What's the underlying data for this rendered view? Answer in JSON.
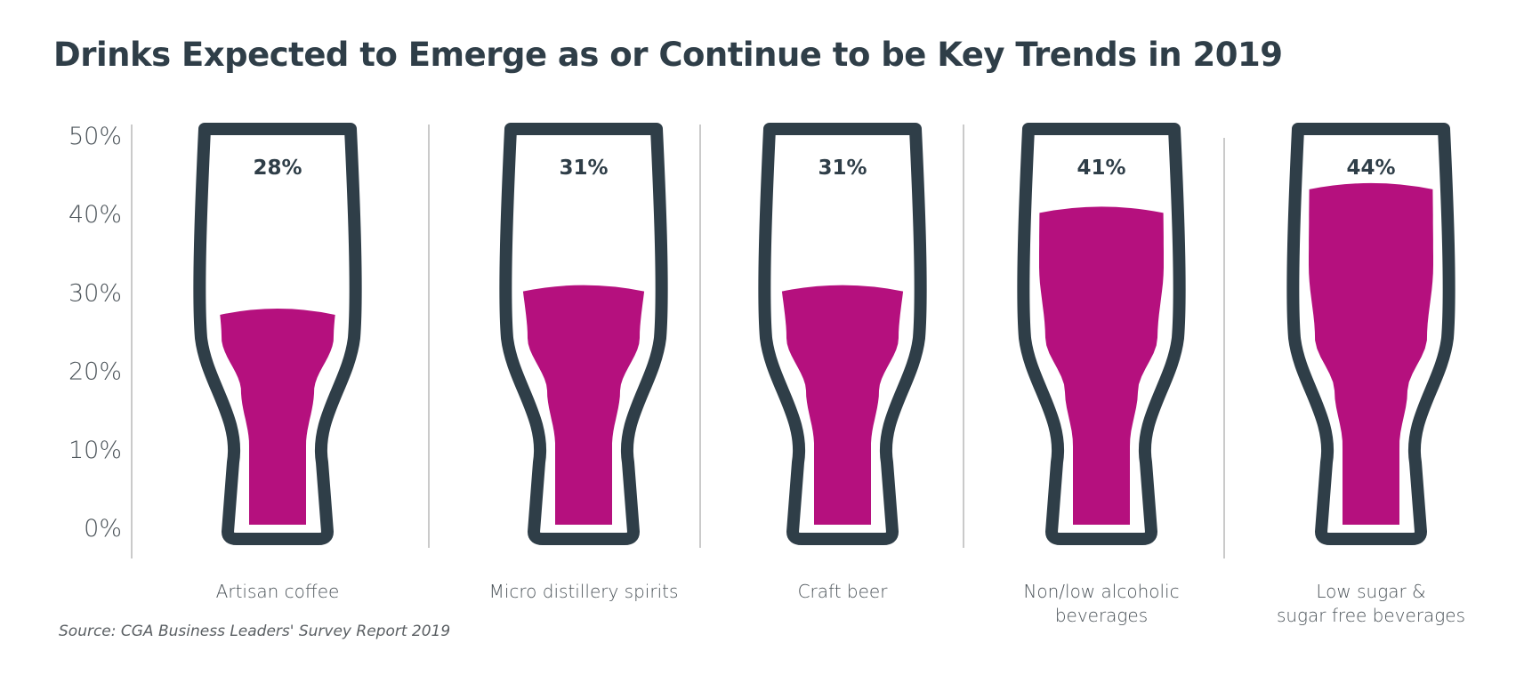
{
  "chart_data": {
    "type": "bar",
    "title": "Drinks Expected to Emerge as or Continue to be Key Trends in 2019",
    "categories": [
      [
        "Artisan coffee"
      ],
      [
        "Micro distillery spirits"
      ],
      [
        "Craft beer"
      ],
      [
        "Non/low alcoholic",
        "beverages"
      ],
      [
        "Low sugar &",
        "sugar free beverages"
      ]
    ],
    "values": [
      28,
      31,
      31,
      41,
      44
    ],
    "value_labels": [
      "28%",
      "31%",
      "31%",
      "41%",
      "44%"
    ],
    "y_ticks": [
      "0%",
      "10%",
      "20%",
      "30%",
      "40%",
      "50%"
    ],
    "ylim": [
      0,
      50
    ],
    "grid": false,
    "legend": "none",
    "source": "Source: CGA Business Leaders' Survey Report 2019"
  },
  "colors": {
    "fill": "#b5107e",
    "outline": "#2f3e48",
    "axis_text": "#4a5258",
    "divider": "#b8b8b8"
  }
}
